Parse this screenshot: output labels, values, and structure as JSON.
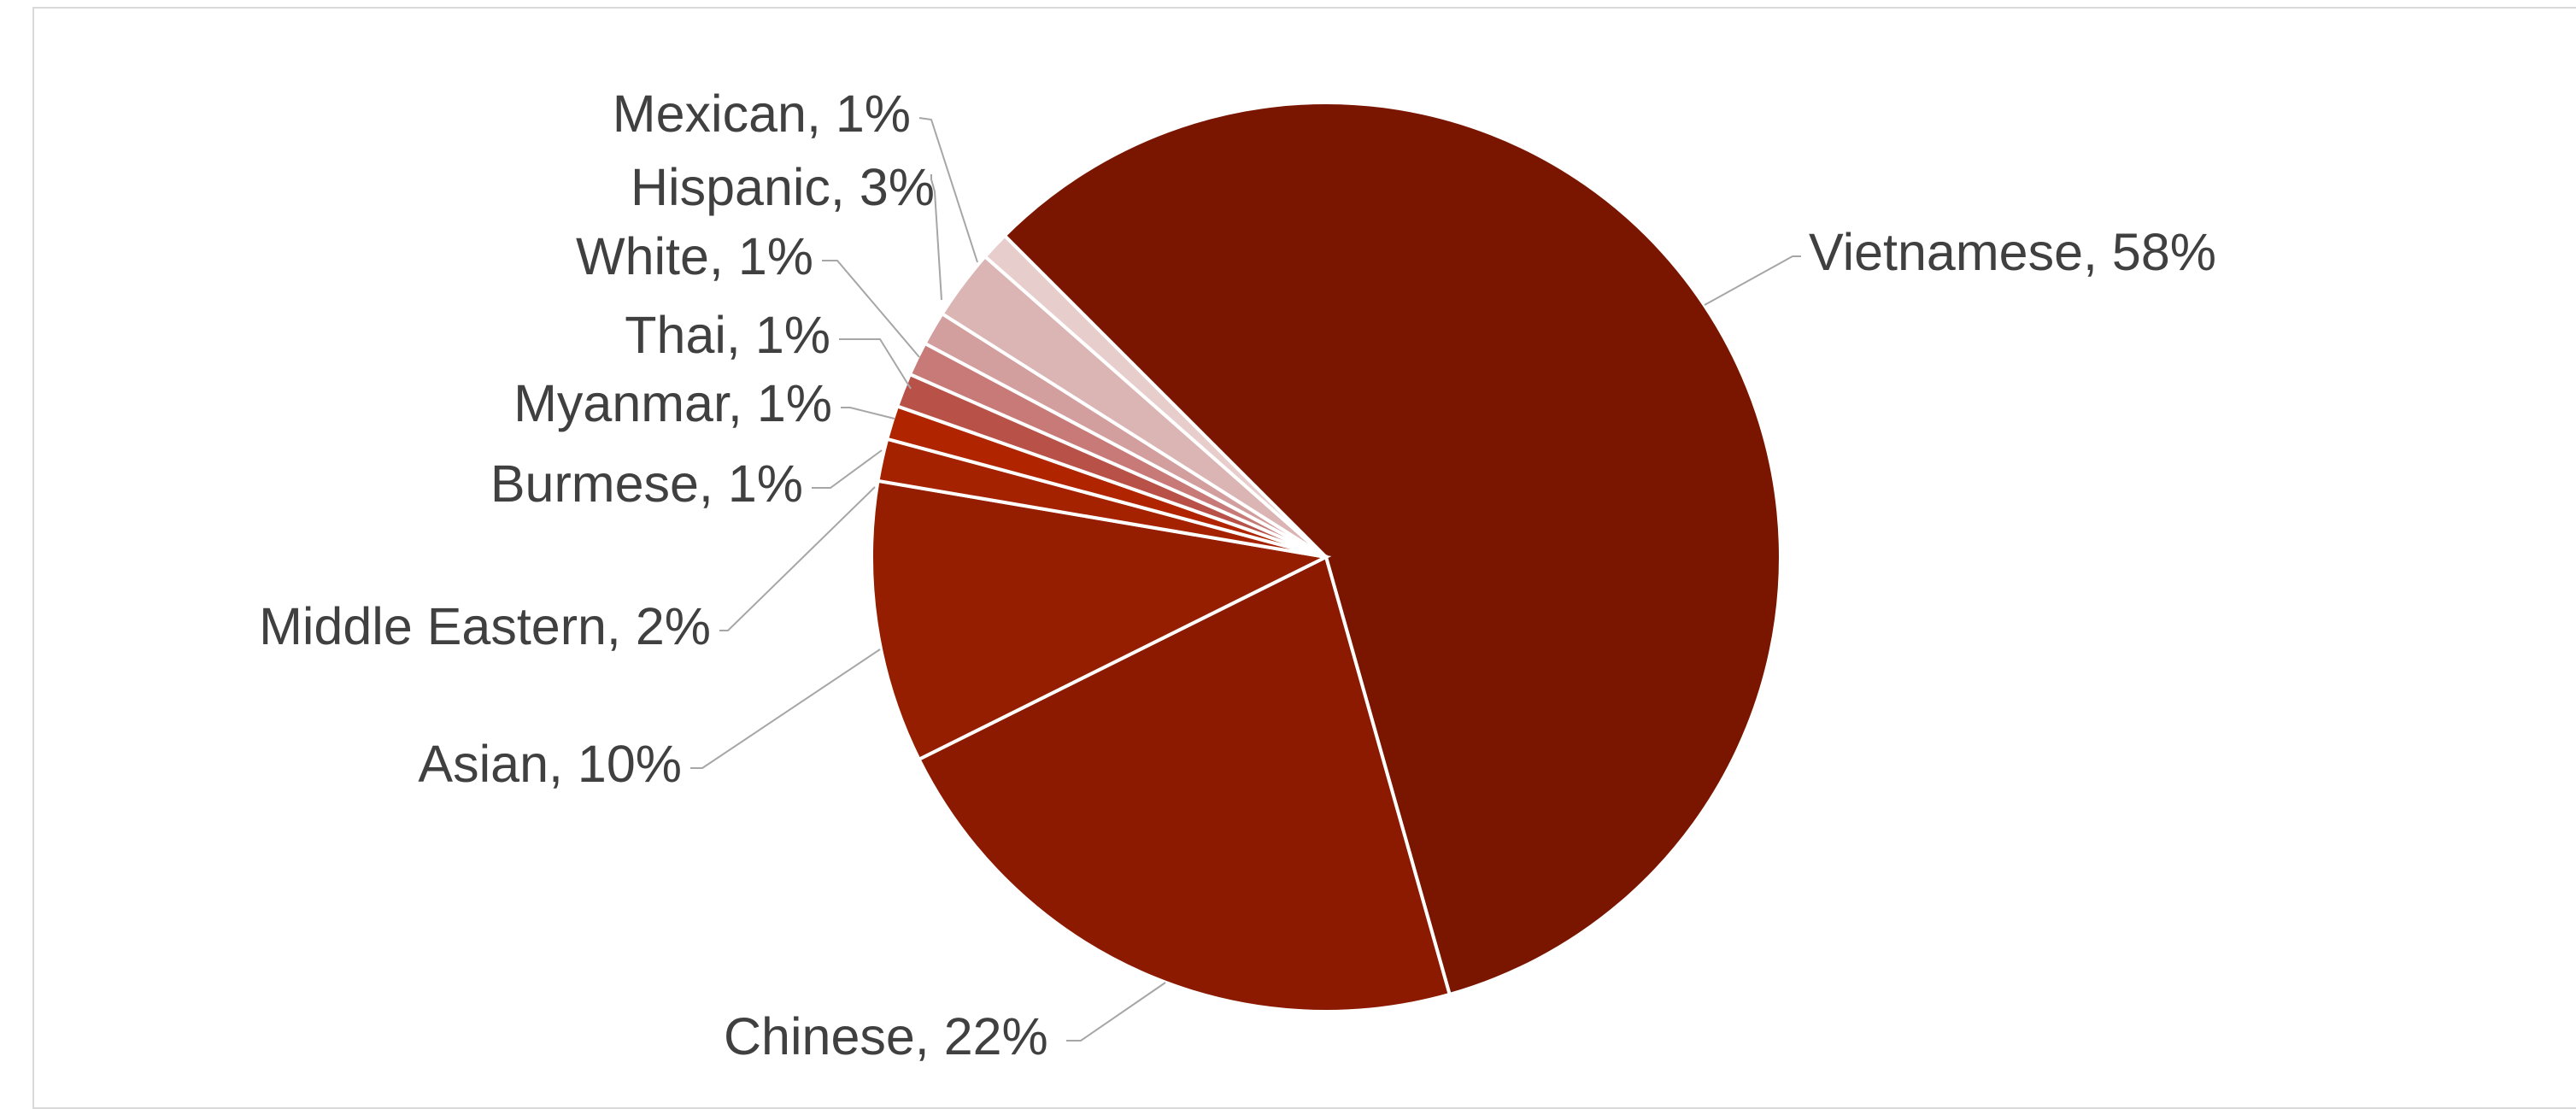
{
  "chart_data": {
    "type": "pie",
    "start_angle_deg": -45,
    "direction": "clockwise",
    "legend": "none",
    "slices": [
      {
        "label": "Vietnamese, 58%",
        "category": "Vietnamese",
        "value": 58,
        "color": "#7a1600"
      },
      {
        "label": "Chinese, 22%",
        "category": "Chinese",
        "value": 22,
        "color": "#8c1a00"
      },
      {
        "label": "Asian, 10%",
        "category": "Asian",
        "value": 10,
        "color": "#961e00"
      },
      {
        "label": "Middle Eastern, 2%",
        "category": "Middle Eastern",
        "value": 1.5,
        "color": "#a52200"
      },
      {
        "label": "Burmese, 1%",
        "category": "Burmese",
        "value": 1.2,
        "color": "#b02500"
      },
      {
        "label": "Myanmar, 1%",
        "category": "Myanmar",
        "value": 1.2,
        "color": "#b85248"
      },
      {
        "label": "Thai, 1%",
        "category": "Thai",
        "value": 1.2,
        "color": "#c77a78"
      },
      {
        "label": "White, 1%",
        "category": "White",
        "value": 1.2,
        "color": "#d39e9e"
      },
      {
        "label": "Hispanic, 3%",
        "category": "Hispanic",
        "value": 2.5,
        "color": "#dbb4b4"
      },
      {
        "label": "Mexican, 1%",
        "category": "Mexican",
        "value": 1.0,
        "color": "#e8cdcd"
      }
    ]
  }
}
